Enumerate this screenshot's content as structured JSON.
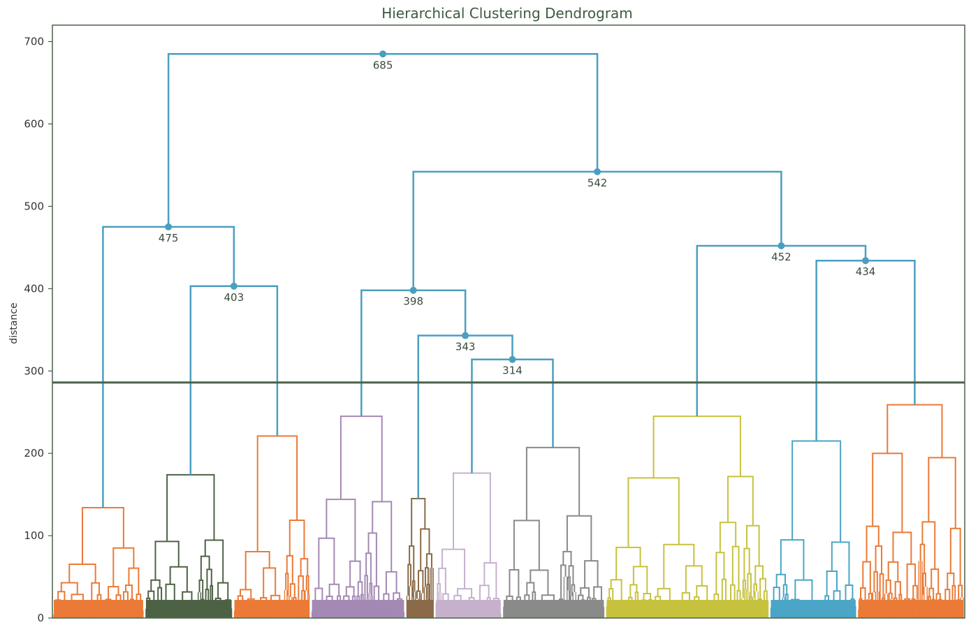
{
  "chart_data": {
    "type": "dendrogram",
    "title": "Hierarchical Clustering Dendrogram",
    "ylabel": "distance",
    "xlabel": "",
    "ylim": [
      0,
      720
    ],
    "yticks": [
      0,
      100,
      200,
      300,
      400,
      500,
      600,
      700
    ],
    "grid": false,
    "cut_height": 286,
    "colors": {
      "upper_link": "#4a9fc0",
      "cut_line": "#4a6249",
      "frame": "#4a6249",
      "orange": "#ea7a36",
      "darkgreen": "#4d6244",
      "purple": "#a389b3",
      "brown": "#8a6a48",
      "pink": "#c6b1cd",
      "gray": "#8a8a8a",
      "mauve": "#9b88a8",
      "olive": "#c7c23e",
      "blue": "#4ba5c6"
    },
    "clusters": [
      {
        "color": "orange",
        "range": [
          0.0,
          0.101
        ],
        "height": 134
      },
      {
        "color": "darkgreen",
        "range": [
          0.101,
          0.198
        ],
        "height": 174
      },
      {
        "color": "orange",
        "range": [
          0.198,
          0.283
        ],
        "height": 221
      },
      {
        "color": "purple",
        "range": [
          0.283,
          0.387
        ],
        "height": 245
      },
      {
        "color": "brown",
        "range": [
          0.387,
          0.419
        ],
        "height": 145
      },
      {
        "color": "pink",
        "range": [
          0.419,
          0.493
        ],
        "height": 176
      },
      {
        "color": "gray",
        "range": [
          0.493,
          0.606
        ],
        "height": 207
      },
      {
        "color": "olive",
        "range": [
          0.606,
          0.786
        ],
        "height": 245
      },
      {
        "color": "blue",
        "range": [
          0.786,
          0.882
        ],
        "height": 215
      },
      {
        "color": "orange",
        "range": [
          0.882,
          1.0
        ],
        "height": 259
      }
    ],
    "merges": [
      {
        "id": "m403",
        "label": "403",
        "height": 403,
        "left": "c1",
        "right": "c2"
      },
      {
        "id": "m475",
        "label": "475",
        "height": 475,
        "left": "c0",
        "right": "m403"
      },
      {
        "id": "m314",
        "label": "314",
        "height": 314,
        "left": "c5",
        "right": "c6"
      },
      {
        "id": "m343",
        "label": "343",
        "height": 343,
        "left": "c4",
        "right": "m314"
      },
      {
        "id": "m398",
        "label": "398",
        "height": 398,
        "left": "c3",
        "right": "m343"
      },
      {
        "id": "m434",
        "label": "434",
        "height": 434,
        "left": "c8",
        "right": "c9"
      },
      {
        "id": "m452",
        "label": "452",
        "height": 452,
        "left": "c7",
        "right": "m434"
      },
      {
        "id": "m542",
        "label": "542",
        "height": 542,
        "left": "m398",
        "right": "m452"
      },
      {
        "id": "m685",
        "label": "685",
        "height": 685,
        "left": "m475",
        "right": "m542"
      }
    ]
  }
}
